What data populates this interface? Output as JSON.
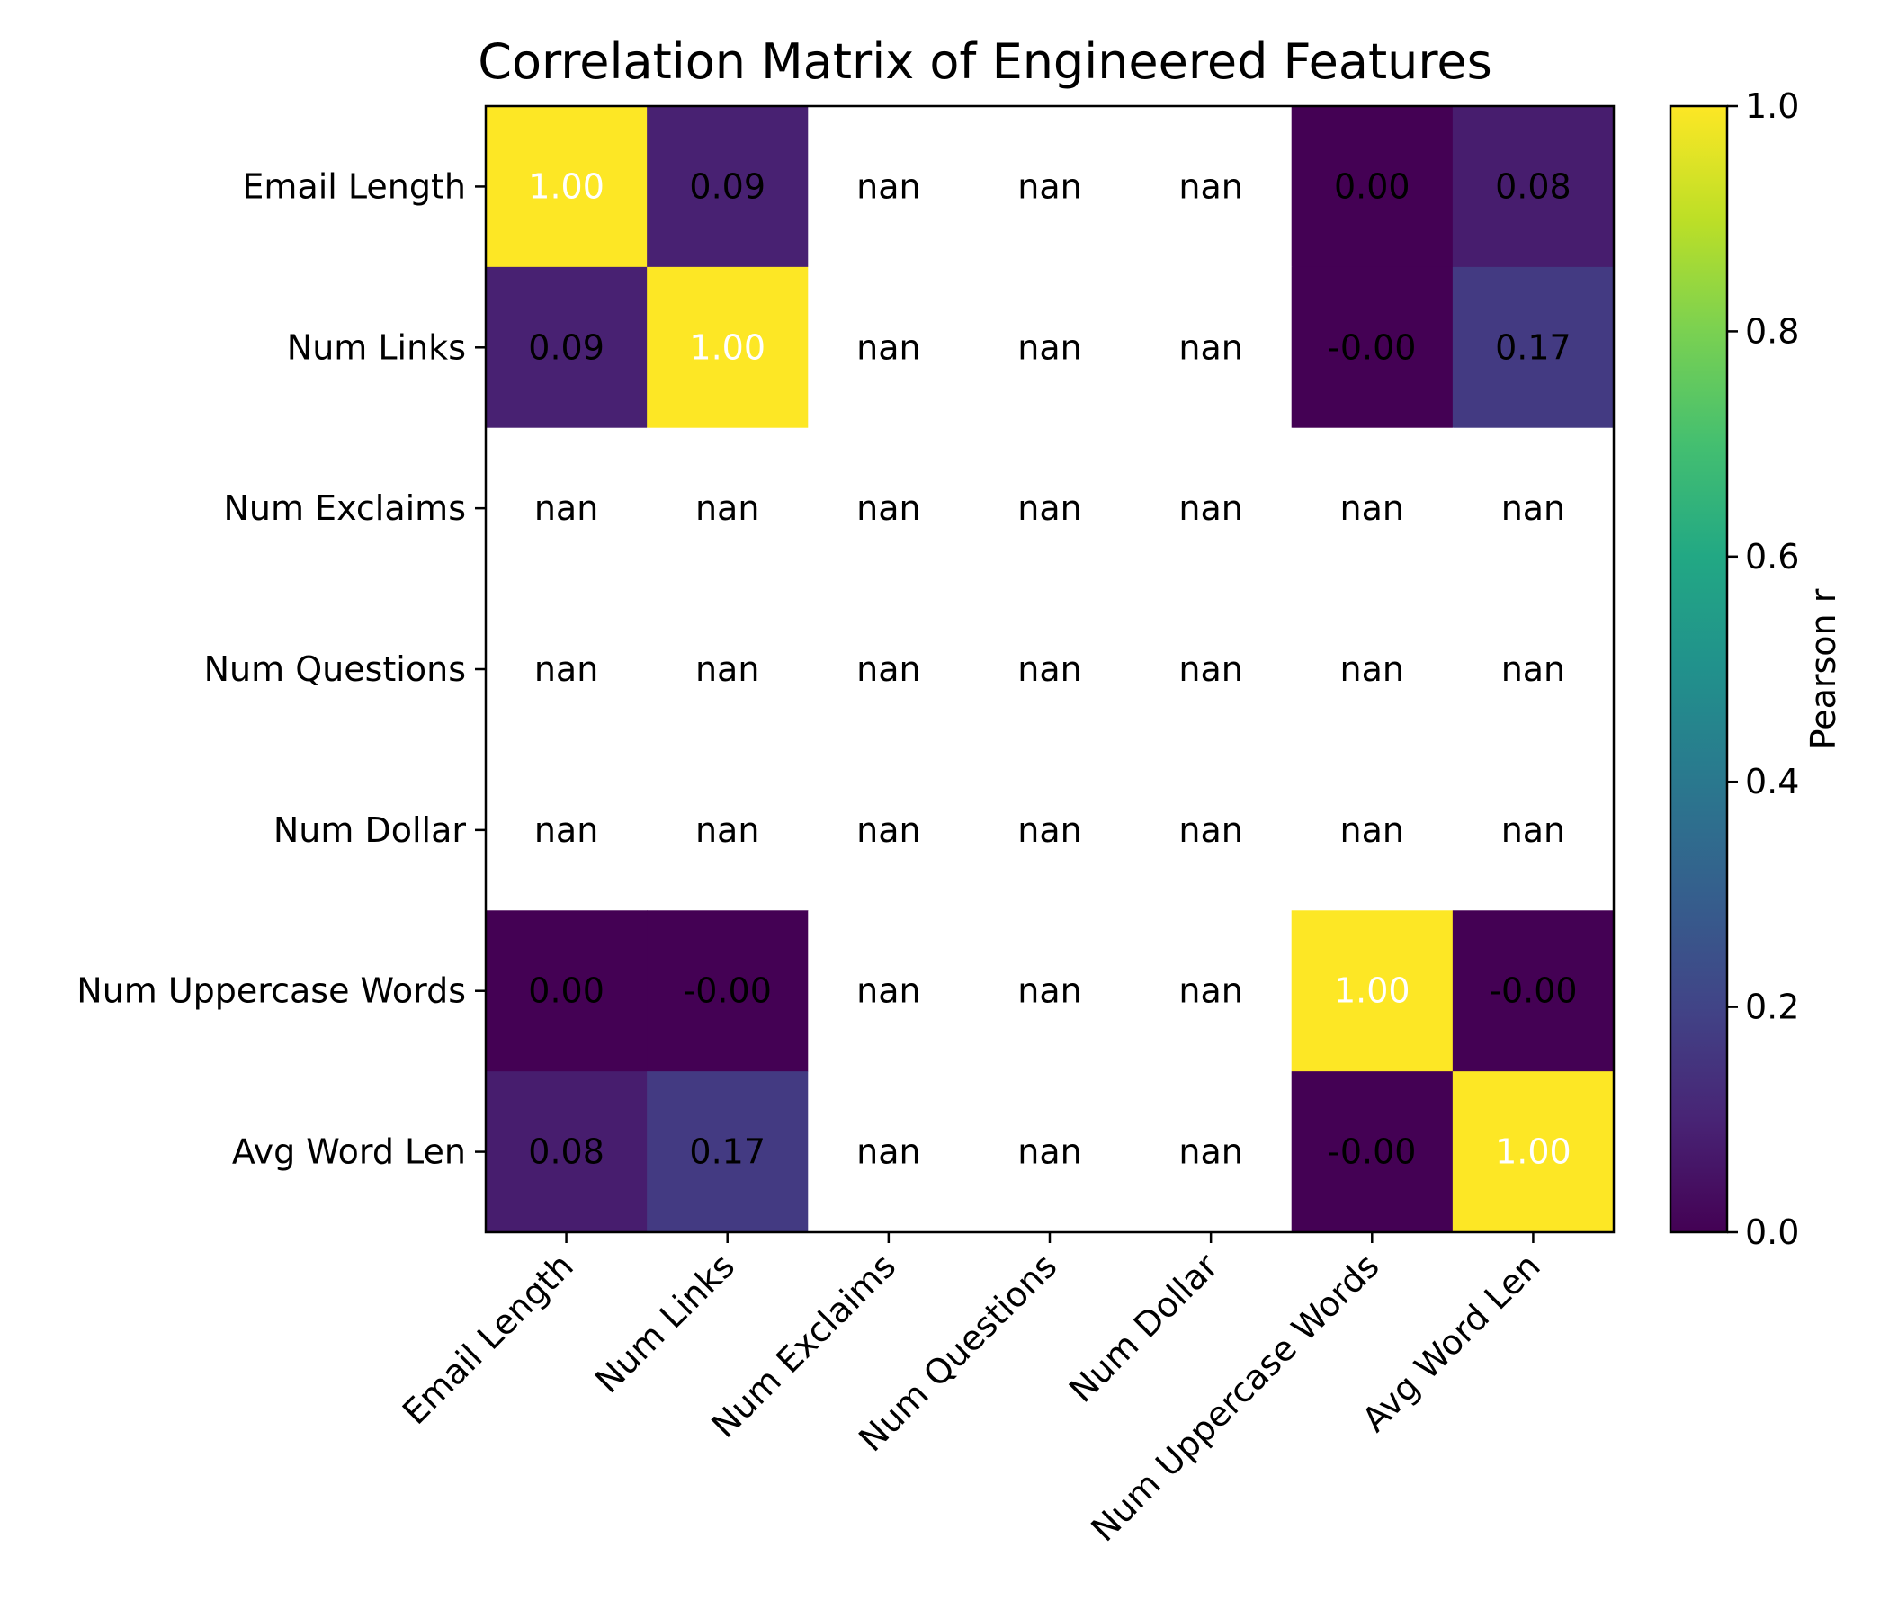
{
  "chart_data": {
    "type": "heatmap",
    "title": "Correlation Matrix of Engineered Features",
    "row_labels": [
      "Email Length",
      "Num Links",
      "Num Exclaims",
      "Num Questions",
      "Num Dollar",
      "Num Uppercase Words",
      "Avg Word Len"
    ],
    "col_labels": [
      "Email Length",
      "Num Links",
      "Num Exclaims",
      "Num Questions",
      "Num Dollar",
      "Num Uppercase Words",
      "Avg Word Len"
    ],
    "values": [
      [
        1.0,
        0.09,
        null,
        null,
        null,
        0.0,
        0.08
      ],
      [
        0.09,
        1.0,
        null,
        null,
        null,
        -0.0,
        0.17
      ],
      [
        null,
        null,
        null,
        null,
        null,
        null,
        null
      ],
      [
        null,
        null,
        null,
        null,
        null,
        null,
        null
      ],
      [
        null,
        null,
        null,
        null,
        null,
        null,
        null
      ],
      [
        0.0,
        -0.0,
        null,
        null,
        null,
        1.0,
        -0.0
      ],
      [
        0.08,
        0.17,
        null,
        null,
        null,
        -0.0,
        1.0
      ]
    ],
    "cell_text": [
      [
        "1.00",
        "0.09",
        "nan",
        "nan",
        "nan",
        "0.00",
        "0.08"
      ],
      [
        "0.09",
        "1.00",
        "nan",
        "nan",
        "nan",
        "-0.00",
        "0.17"
      ],
      [
        "nan",
        "nan",
        "nan",
        "nan",
        "nan",
        "nan",
        "nan"
      ],
      [
        "nan",
        "nan",
        "nan",
        "nan",
        "nan",
        "nan",
        "nan"
      ],
      [
        "nan",
        "nan",
        "nan",
        "nan",
        "nan",
        "nan",
        "nan"
      ],
      [
        "0.00",
        "-0.00",
        "nan",
        "nan",
        "nan",
        "1.00",
        "-0.00"
      ],
      [
        "0.08",
        "0.17",
        "nan",
        "nan",
        "nan",
        "-0.00",
        "1.00"
      ]
    ],
    "colormap": "viridis",
    "colorbar": {
      "label": "Pearson r",
      "range": [
        0.0,
        1.0
      ],
      "ticks": [
        0.0,
        0.2,
        0.4,
        0.6,
        0.8,
        1.0
      ],
      "tick_labels": [
        "0.0",
        "0.2",
        "0.4",
        "0.6",
        "0.8",
        "1.0"
      ]
    },
    "nan_color": "#ffffff",
    "grid": false
  }
}
